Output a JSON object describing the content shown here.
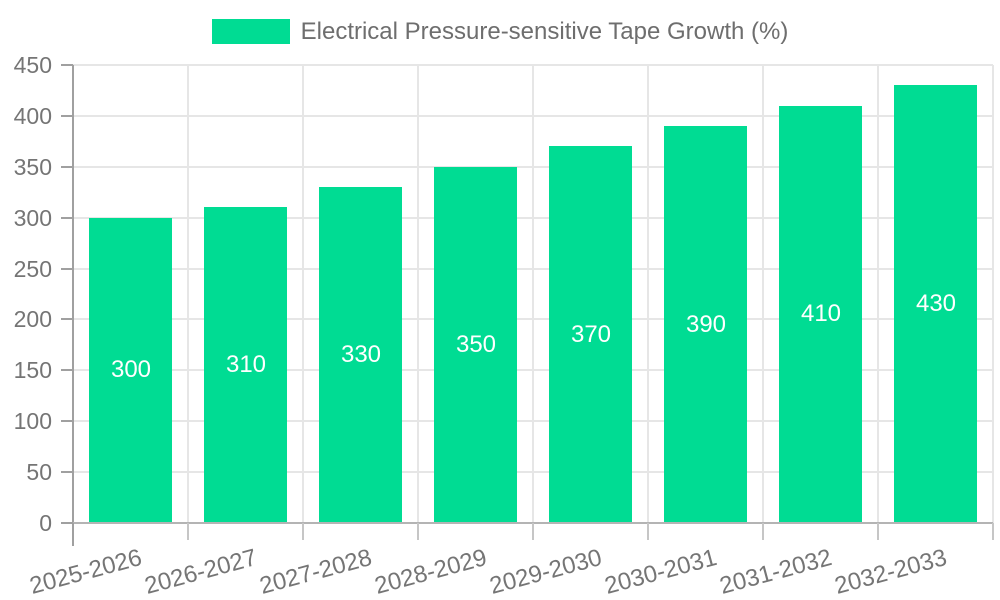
{
  "chart_data": {
    "type": "bar",
    "title": "",
    "legend": {
      "label": "Electrical Pressure-sensitive Tape Growth (%)",
      "position": "top-center"
    },
    "categories": [
      "2025-2026",
      "2026-2027",
      "2027-2028",
      "2028-2029",
      "2029-2030",
      "2030-2031",
      "2031-2032",
      "2032-2033"
    ],
    "values": [
      300,
      310,
      330,
      350,
      370,
      390,
      410,
      430
    ],
    "value_labels": [
      "300",
      "310",
      "330",
      "350",
      "370",
      "390",
      "410",
      "430"
    ],
    "yticks": [
      0,
      50,
      100,
      150,
      200,
      250,
      300,
      350,
      400,
      450
    ],
    "ylim": [
      0,
      450
    ],
    "xlabel": "",
    "ylabel": "",
    "grid": true,
    "x_label_rotation_deg": -15,
    "colors": {
      "bar": "#00DC93",
      "value_label": "#ffffff",
      "axis_text": "#757575",
      "legend_text": "#6e6e6e",
      "gridline": "#e6e6e6",
      "y_axis_line": "#a0a0a0",
      "x_axis_line": "#b4b4b4",
      "minor_tick": "#c6c6c6",
      "background": "#ffffff"
    }
  }
}
